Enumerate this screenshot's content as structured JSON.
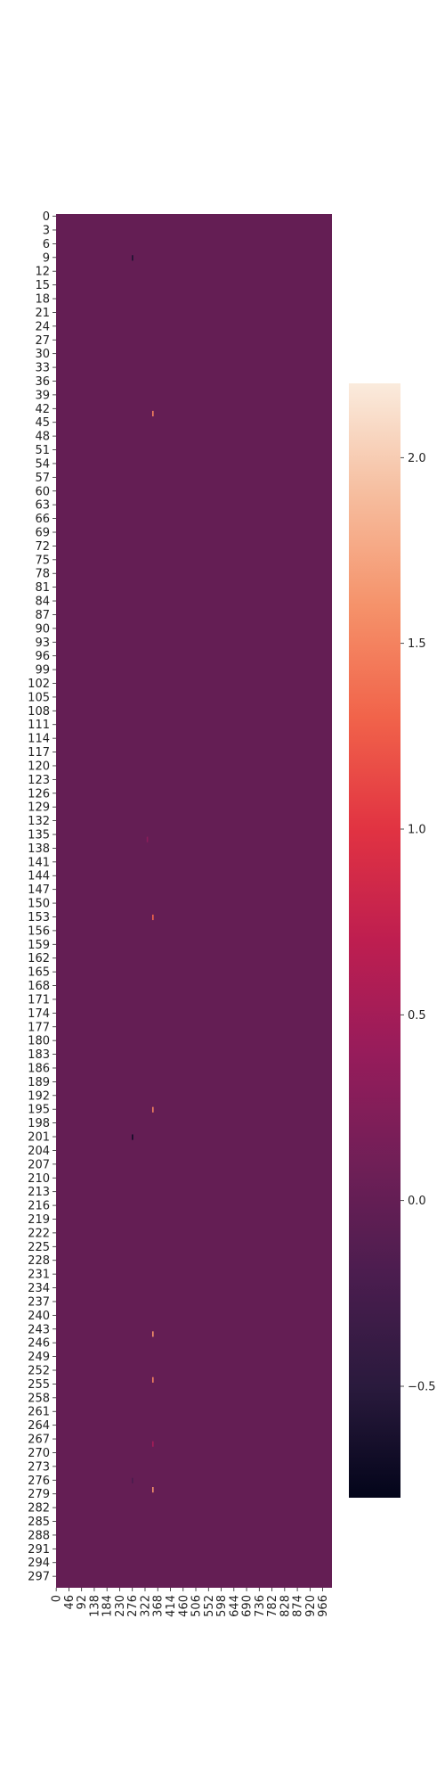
{
  "chart_data": {
    "type": "heatmap",
    "title": "",
    "xlabel": "",
    "ylabel": "",
    "rows": 300,
    "cols": 1000,
    "x_tick_labels": [
      "0",
      "46",
      "92",
      "138",
      "184",
      "230",
      "276",
      "322",
      "368",
      "414",
      "460",
      "506",
      "552",
      "598",
      "644",
      "690",
      "736",
      "782",
      "828",
      "874",
      "920",
      "966"
    ],
    "y_tick_labels": [
      "0",
      "3",
      "6",
      "9",
      "12",
      "15",
      "18",
      "21",
      "24",
      "27",
      "30",
      "33",
      "36",
      "39",
      "42",
      "45",
      "48",
      "51",
      "54",
      "57",
      "60",
      "63",
      "66",
      "69",
      "72",
      "75",
      "78",
      "81",
      "84",
      "87",
      "90",
      "93",
      "96",
      "99",
      "102",
      "105",
      "108",
      "111",
      "114",
      "117",
      "120",
      "123",
      "126",
      "129",
      "132",
      "135",
      "138",
      "141",
      "144",
      "147",
      "150",
      "153",
      "156",
      "159",
      "162",
      "165",
      "168",
      "171",
      "174",
      "177",
      "180",
      "183",
      "186",
      "189",
      "192",
      "195",
      "198",
      "201",
      "204",
      "207",
      "210",
      "213",
      "216",
      "219",
      "222",
      "225",
      "228",
      "231",
      "234",
      "237",
      "240",
      "243",
      "246",
      "249",
      "252",
      "255",
      "258",
      "261",
      "264",
      "267",
      "270",
      "273",
      "276",
      "279",
      "282",
      "285",
      "288",
      "291",
      "294",
      "297"
    ],
    "background_value": 0.0,
    "vmin": -0.8,
    "vmax": 2.2,
    "colormap": "rocket",
    "colorbar_ticks": [
      {
        "value": 2.0,
        "label": "2.0"
      },
      {
        "value": 1.5,
        "label": "1.5"
      },
      {
        "value": 1.0,
        "label": "1.0"
      },
      {
        "value": 0.5,
        "label": "0.5"
      },
      {
        "value": 0.0,
        "label": "0.0"
      },
      {
        "value": -0.5,
        "label": "−0.5"
      }
    ],
    "highlighted_cells": [
      {
        "row": 9,
        "col": 276,
        "value": -0.6
      },
      {
        "row": 43,
        "col": 350,
        "value": 1.5
      },
      {
        "row": 153,
        "col": 350,
        "value": 1.3
      },
      {
        "row": 195,
        "col": 350,
        "value": 1.5
      },
      {
        "row": 201,
        "col": 276,
        "value": -0.7
      },
      {
        "row": 244,
        "col": 350,
        "value": 1.6
      },
      {
        "row": 254,
        "col": 350,
        "value": 1.5
      },
      {
        "row": 276,
        "col": 276,
        "value": -0.2
      },
      {
        "row": 278,
        "col": 350,
        "value": 1.6
      },
      {
        "row": 268,
        "col": 350,
        "value": 0.5
      },
      {
        "row": 136,
        "col": 330,
        "value": 0.3
      }
    ]
  }
}
